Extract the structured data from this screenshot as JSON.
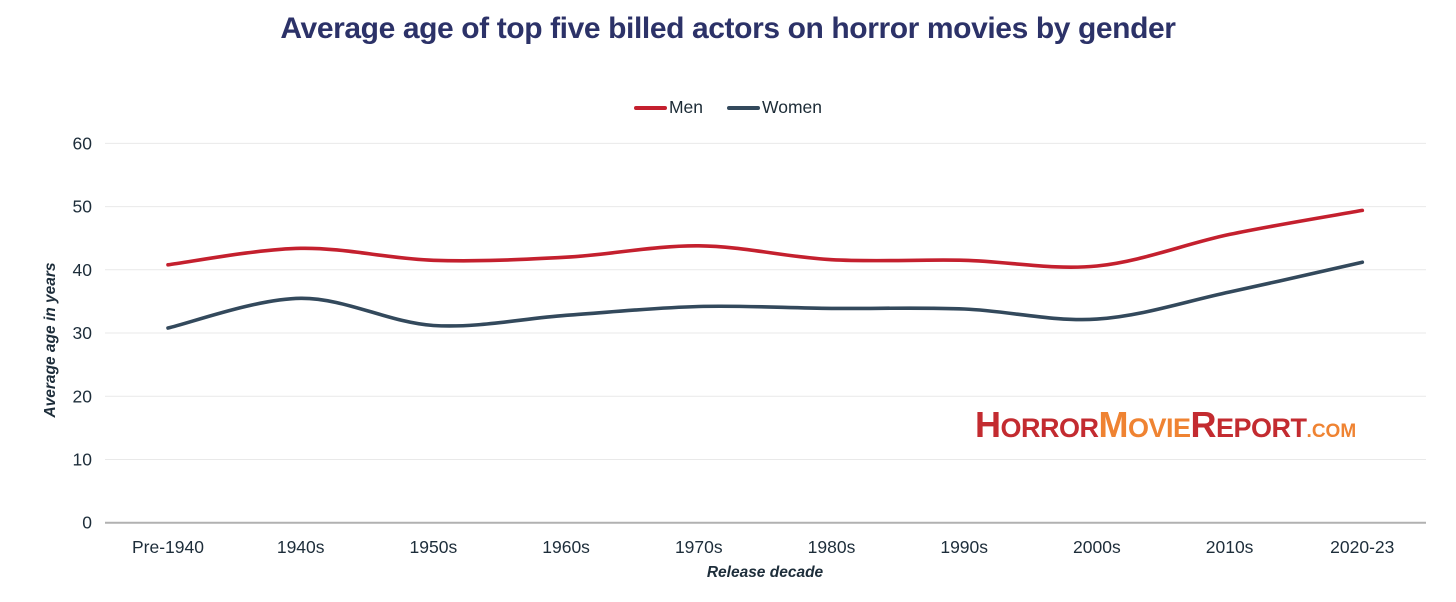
{
  "header": {
    "title": "Average age of top five billed actors on horror movies by gender"
  },
  "colors": {
    "background": "#ffffff",
    "title": "#2c3268",
    "axis_text": "#1d2d3a",
    "gridline": "#e9e9e9",
    "zero_line": "#b1b1b1",
    "men_line": "#c4202e",
    "women_line": "#33495c",
    "watermark_red": "#c32b30",
    "watermark_orange": "#ef8332"
  },
  "chart_data": {
    "type": "line",
    "title": "Average age of top five billed actors on horror movies by gender",
    "categories": [
      "Pre-1940",
      "1940s",
      "1950s",
      "1960s",
      "1970s",
      "1980s",
      "1990s",
      "2000s",
      "2010s",
      "2020-23"
    ],
    "series": [
      {
        "name": "Men",
        "color": "#c4202e",
        "values": [
          40.8,
          43.4,
          41.5,
          42.0,
          43.8,
          41.6,
          41.5,
          40.6,
          45.6,
          49.4
        ]
      },
      {
        "name": "Women",
        "color": "#33495c",
        "values": [
          30.8,
          35.5,
          31.2,
          32.8,
          34.2,
          33.9,
          33.8,
          32.2,
          36.5,
          41.2
        ]
      }
    ],
    "xlabel": "Release decade",
    "ylabel": "Average age in years",
    "ylim": [
      0,
      60
    ],
    "yticks": [
      0,
      10,
      20,
      30,
      40,
      50,
      60
    ],
    "grid": "horizontal",
    "legend_position": "top-center",
    "curve": "smooth"
  },
  "watermark": {
    "segments": [
      {
        "text": "Horror",
        "color": "#c32b30"
      },
      {
        "text": "Movie",
        "color": "#ef8332"
      },
      {
        "text": "Report",
        "color": "#c32b30"
      },
      {
        "text": ".com",
        "color": "#ef8332"
      }
    ]
  }
}
